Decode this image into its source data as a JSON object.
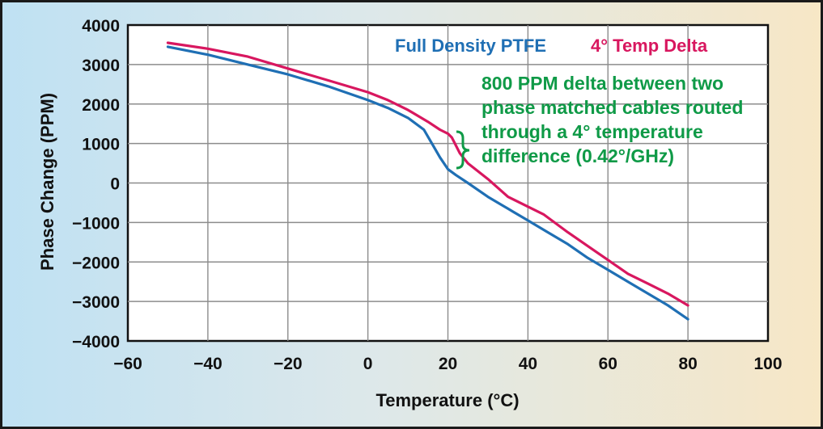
{
  "chart_data": {
    "type": "line",
    "xlabel": "Temperature (°C)",
    "ylabel": "Phase Change (PPM)",
    "xlim": [
      -60,
      100
    ],
    "ylim": [
      -4000,
      4000
    ],
    "x_ticks": [
      -60,
      -40,
      -20,
      0,
      20,
      40,
      60,
      80,
      100
    ],
    "y_ticks": [
      4000,
      3000,
      2000,
      1000,
      0,
      -1000,
      -2000,
      -3000,
      -4000
    ],
    "x_tick_labels": [
      "−60",
      "−40",
      "−20",
      "0",
      "20",
      "40",
      "60",
      "80",
      "100"
    ],
    "y_tick_labels": [
      "4000",
      "3000",
      "2000",
      "1000",
      "0",
      "−1000",
      "−2000",
      "−3000",
      "−4000"
    ],
    "grid": true,
    "series": [
      {
        "name": "Full Density PTFE",
        "color": "#1f6fb4",
        "x": [
          -50,
          -40,
          -30,
          -20,
          -10,
          0,
          5,
          10,
          14,
          16,
          18,
          20,
          22,
          25,
          30,
          35,
          40,
          45,
          50,
          55,
          60,
          65,
          70,
          75,
          80
        ],
        "y": [
          3450,
          3250,
          3000,
          2750,
          2450,
          2100,
          1900,
          1650,
          1350,
          1000,
          650,
          350,
          200,
          0,
          -350,
          -650,
          -950,
          -1250,
          -1550,
          -1900,
          -2200,
          -2500,
          -2800,
          -3100,
          -3450
        ]
      },
      {
        "name": "4° Temp Delta",
        "color": "#d8175f",
        "x": [
          -50,
          -40,
          -30,
          -20,
          -10,
          0,
          5,
          10,
          15,
          18,
          20,
          21,
          22,
          23,
          25,
          30,
          35,
          40,
          44,
          50,
          55,
          60,
          65,
          70,
          75,
          80
        ],
        "y": [
          3550,
          3400,
          3200,
          2900,
          2600,
          2300,
          2100,
          1850,
          1550,
          1350,
          1250,
          1150,
          950,
          750,
          500,
          100,
          -350,
          -600,
          -800,
          -1250,
          -1600,
          -1950,
          -2300,
          -2550,
          -2800,
          -3100
        ]
      }
    ],
    "annotation": {
      "lines": [
        "800 PPM delta between two",
        "phase matched cables routed",
        "through a 4° temperature",
        "difference (0.42°/GHz)"
      ],
      "color": "#0f9a47"
    }
  }
}
